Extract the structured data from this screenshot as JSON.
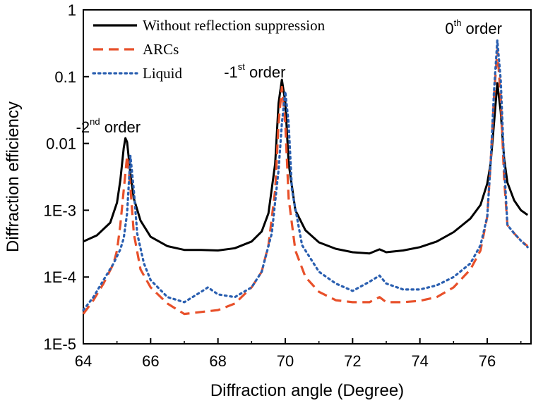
{
  "chart_data": {
    "type": "line",
    "xlabel": "Diffraction angle (Degree)",
    "ylabel": "Diffraction efficiency",
    "xlim": [
      64,
      77.3
    ],
    "ylim": [
      1e-05,
      1
    ],
    "yscale": "log",
    "xticks": [
      64,
      66,
      68,
      70,
      72,
      74,
      76
    ],
    "xtick_labels": [
      "64",
      "66",
      "68",
      "70",
      "72",
      "74",
      "76"
    ],
    "yticks": [
      1e-05,
      0.0001,
      0.001,
      0.01,
      0.1,
      1
    ],
    "ytick_labels": [
      "1E-5",
      "1E-4",
      "1E-3",
      "0.01",
      "0.1",
      "1"
    ],
    "grid": false,
    "legend_position": "top-left",
    "series": [
      {
        "name": "Without reflection suppression",
        "color": "#000000",
        "style": "solid",
        "x": [
          64.0,
          64.4,
          64.8,
          65.0,
          65.1,
          65.2,
          65.25,
          65.3,
          65.4,
          65.5,
          65.7,
          66.0,
          66.5,
          67.0,
          67.5,
          68.0,
          68.5,
          69.0,
          69.3,
          69.5,
          69.7,
          69.8,
          69.9,
          70.0,
          70.1,
          70.3,
          70.6,
          71.0,
          71.5,
          72.0,
          72.5,
          72.8,
          73.0,
          73.5,
          74.0,
          74.5,
          75.0,
          75.5,
          75.8,
          76.0,
          76.1,
          76.2,
          76.3,
          76.4,
          76.5,
          76.6,
          76.8,
          77.0,
          77.2
        ],
        "y": [
          0.00034,
          0.00042,
          0.00065,
          0.0013,
          0.0028,
          0.0085,
          0.012,
          0.0105,
          0.0035,
          0.0015,
          0.0007,
          0.0004,
          0.00029,
          0.000255,
          0.000255,
          0.00025,
          0.00027,
          0.00034,
          0.00048,
          0.0009,
          0.005,
          0.04,
          0.09,
          0.042,
          0.005,
          0.001,
          0.0005,
          0.00033,
          0.000265,
          0.000235,
          0.000225,
          0.00026,
          0.000235,
          0.00025,
          0.00028,
          0.00034,
          0.00047,
          0.00075,
          0.0012,
          0.0025,
          0.005,
          0.02,
          0.08,
          0.03,
          0.006,
          0.0026,
          0.0014,
          0.001,
          0.00085
        ]
      },
      {
        "name": "ARCs",
        "color": "#e8502a",
        "style": "dashed",
        "x": [
          64.0,
          64.3,
          64.6,
          64.9,
          65.0,
          65.1,
          65.2,
          65.3,
          65.4,
          65.5,
          65.7,
          66.0,
          66.5,
          67.0,
          67.5,
          68.0,
          68.5,
          69.0,
          69.3,
          69.5,
          69.7,
          69.8,
          69.9,
          70.0,
          70.1,
          70.3,
          70.6,
          71.0,
          71.5,
          72.0,
          72.5,
          72.8,
          73.0,
          73.5,
          74.0,
          74.5,
          75.0,
          75.5,
          75.8,
          76.0,
          76.1,
          76.2,
          76.3,
          76.4,
          76.5,
          76.6,
          76.8,
          77.0,
          77.2
        ],
        "y": [
          2.8e-05,
          4.5e-05,
          8e-05,
          0.00016,
          0.00025,
          0.0006,
          0.002,
          0.0065,
          0.0022,
          0.00045,
          0.00013,
          7e-05,
          4e-05,
          2.8e-05,
          3e-05,
          3.2e-05,
          4e-05,
          7e-05,
          0.00012,
          0.0003,
          0.002,
          0.02,
          0.07,
          0.02,
          0.0015,
          0.00025,
          0.0001,
          6e-05,
          4.5e-05,
          4.2e-05,
          4.2e-05,
          5e-05,
          4.2e-05,
          4.2e-05,
          4.4e-05,
          5e-05,
          7e-05,
          0.00013,
          0.00025,
          0.0008,
          0.005,
          0.05,
          0.25,
          0.05,
          0.003,
          0.0006,
          0.00045,
          0.00035,
          0.00029
        ]
      },
      {
        "name": "Liquid",
        "color": "#2a5fb0",
        "style": "dotted",
        "x": [
          64.0,
          64.3,
          64.6,
          64.9,
          65.1,
          65.2,
          65.3,
          65.4,
          65.5,
          65.6,
          65.8,
          66.0,
          66.5,
          67.0,
          67.5,
          67.7,
          68.0,
          68.5,
          69.0,
          69.3,
          69.6,
          69.8,
          69.9,
          70.0,
          70.1,
          70.2,
          70.5,
          71.0,
          71.5,
          72.0,
          72.5,
          72.8,
          73.0,
          73.5,
          74.0,
          74.5,
          75.0,
          75.5,
          75.8,
          76.0,
          76.1,
          76.2,
          76.3,
          76.4,
          76.5,
          76.6,
          76.8,
          77.0,
          77.2
        ],
        "y": [
          3.2e-05,
          5e-05,
          9e-05,
          0.00016,
          0.00026,
          0.00038,
          0.0009,
          0.0065,
          0.002,
          0.00045,
          0.00016,
          9e-05,
          5e-05,
          4.2e-05,
          6e-05,
          7e-05,
          5.5e-05,
          5e-05,
          7e-05,
          0.00012,
          0.00045,
          0.004,
          0.02,
          0.06,
          0.02,
          0.002,
          0.0003,
          0.00012,
          8e-05,
          6.2e-05,
          8.5e-05,
          0.000105,
          8e-05,
          6.5e-05,
          6.5e-05,
          7.5e-05,
          0.0001,
          0.00016,
          0.0003,
          0.0008,
          0.005,
          0.06,
          0.35,
          0.09,
          0.005,
          0.0006,
          0.00045,
          0.00035,
          0.00028
        ]
      }
    ],
    "annotations": [
      {
        "base": "-2",
        "sup": "nd",
        "rest": " order",
        "x": 65.25
      },
      {
        "base": "-1",
        "sup": "st",
        "rest": " order",
        "x": 69.9
      },
      {
        "base": "0",
        "sup": "th",
        "rest": " order",
        "x": 76.3
      }
    ]
  }
}
